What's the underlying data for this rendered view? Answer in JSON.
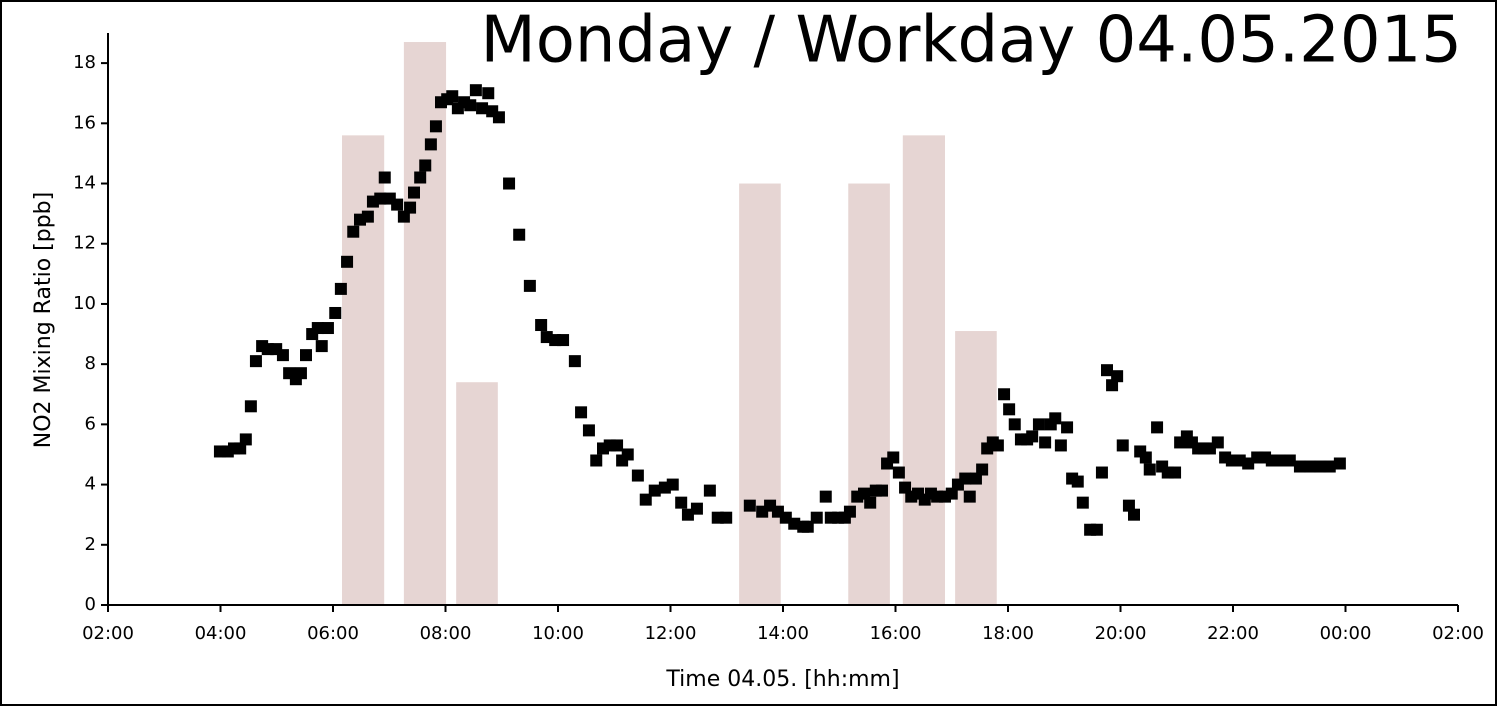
{
  "chart_data": {
    "type": "scatter",
    "title": "Monday / Workday 04.05.2015",
    "xlabel": "Time 04.05. [hh:mm]",
    "ylabel": "NO2 Mixing Ratio [ppb]",
    "xlim": [
      2,
      26
    ],
    "ylim": [
      0,
      19
    ],
    "xticks": [
      {
        "value": 2,
        "label": "02:00"
      },
      {
        "value": 4,
        "label": "04:00"
      },
      {
        "value": 6,
        "label": "06:00"
      },
      {
        "value": 8,
        "label": "08:00"
      },
      {
        "value": 10,
        "label": "10:00"
      },
      {
        "value": 12,
        "label": "12:00"
      },
      {
        "value": 14,
        "label": "14:00"
      },
      {
        "value": 16,
        "label": "16:00"
      },
      {
        "value": 18,
        "label": "18:00"
      },
      {
        "value": 20,
        "label": "20:00"
      },
      {
        "value": 22,
        "label": "22:00"
      },
      {
        "value": 24,
        "label": "00:00"
      },
      {
        "value": 26,
        "label": "02:00"
      }
    ],
    "yticks": [
      0,
      2,
      4,
      6,
      8,
      10,
      12,
      14,
      16,
      18
    ],
    "series": [
      {
        "type": "bar",
        "color": "#e6d5d3",
        "x0": [
          6.16,
          7.26,
          8.19,
          13.22,
          15.16,
          16.13,
          17.06
        ],
        "x1": [
          6.91,
          8.01,
          8.93,
          13.96,
          15.9,
          16.88,
          17.8
        ],
        "values": [
          15.6,
          18.7,
          7.4,
          14.0,
          14.0,
          15.6,
          9.1
        ]
      },
      {
        "type": "scatter",
        "color": "#000000",
        "x": [
          3.99,
          4.13,
          4.24,
          4.35,
          4.45,
          4.54,
          4.63,
          4.74,
          4.84,
          4.99,
          5.11,
          5.22,
          5.34,
          5.43,
          5.52,
          5.63,
          5.73,
          5.8,
          5.91,
          6.04,
          6.14,
          6.25,
          6.36,
          6.48,
          6.62,
          6.71,
          6.84,
          6.92,
          7.01,
          7.14,
          7.26,
          7.37,
          7.44,
          7.55,
          7.64,
          7.74,
          7.83,
          7.92,
          8.03,
          8.12,
          8.22,
          8.33,
          8.44,
          8.54,
          8.65,
          8.76,
          8.83,
          8.95,
          9.13,
          9.31,
          9.5,
          9.7,
          9.8,
          9.95,
          10.09,
          10.3,
          10.41,
          10.55,
          10.68,
          10.8,
          10.92,
          11.05,
          11.14,
          11.24,
          11.42,
          11.56,
          11.72,
          11.9,
          12.04,
          12.19,
          12.31,
          12.47,
          12.7,
          12.84,
          12.99,
          13.41,
          13.63,
          13.77,
          13.91,
          14.05,
          14.2,
          14.36,
          14.44,
          14.6,
          14.76,
          14.85,
          14.98,
          15.1,
          15.19,
          15.32,
          15.44,
          15.55,
          15.65,
          15.76,
          15.85,
          15.96,
          16.06,
          16.17,
          16.28,
          16.4,
          16.52,
          16.63,
          16.74,
          16.88,
          17.0,
          17.11,
          17.24,
          17.32,
          17.43,
          17.54,
          17.63,
          17.73,
          17.82,
          17.93,
          18.02,
          18.12,
          18.23,
          18.34,
          18.43,
          18.55,
          18.66,
          18.76,
          18.84,
          18.94,
          19.05,
          19.14,
          19.24,
          19.33,
          19.46,
          19.58,
          19.67,
          19.76,
          19.85,
          19.94,
          20.04,
          20.15,
          20.24,
          20.35,
          20.45,
          20.52,
          20.65,
          20.74,
          20.84,
          20.97,
          21.06,
          21.18,
          21.27,
          21.38,
          21.48,
          21.59,
          21.73,
          21.86,
          21.98,
          22.12,
          22.27,
          22.43,
          22.57,
          22.69,
          22.84,
          23.01,
          23.19,
          23.37,
          23.55,
          23.72,
          23.9
        ],
        "values": [
          5.1,
          5.1,
          5.2,
          5.2,
          5.5,
          6.6,
          8.1,
          8.6,
          8.5,
          8.5,
          8.3,
          7.7,
          7.5,
          7.7,
          8.3,
          9.0,
          9.2,
          8.6,
          9.2,
          9.7,
          10.5,
          11.4,
          12.4,
          12.8,
          12.9,
          13.4,
          13.5,
          14.2,
          13.5,
          13.3,
          12.9,
          13.2,
          13.7,
          14.2,
          14.6,
          15.3,
          15.9,
          16.7,
          16.8,
          16.9,
          16.5,
          16.7,
          16.6,
          17.1,
          16.5,
          17.0,
          16.4,
          16.2,
          14.0,
          12.3,
          10.6,
          9.3,
          8.9,
          8.8,
          8.8,
          8.1,
          6.4,
          5.8,
          4.8,
          5.2,
          5.3,
          5.3,
          4.8,
          5.0,
          4.3,
          3.5,
          3.8,
          3.9,
          4.0,
          3.4,
          3.0,
          3.2,
          3.8,
          2.9,
          2.9,
          3.3,
          3.1,
          3.3,
          3.1,
          2.9,
          2.7,
          2.6,
          2.6,
          2.9,
          3.6,
          2.9,
          2.9,
          2.9,
          3.1,
          3.6,
          3.7,
          3.4,
          3.8,
          3.8,
          4.7,
          4.9,
          4.4,
          3.9,
          3.6,
          3.7,
          3.5,
          3.7,
          3.6,
          3.6,
          3.7,
          4.0,
          4.2,
          3.6,
          4.2,
          4.5,
          5.2,
          5.4,
          5.3,
          7.0,
          6.5,
          6.0,
          5.5,
          5.5,
          5.6,
          6.0,
          5.4,
          6.0,
          6.2,
          5.3,
          5.9,
          4.2,
          4.1,
          3.4,
          2.5,
          2.5,
          4.4,
          7.8,
          7.3,
          7.6,
          5.3,
          3.3,
          3.0,
          5.1,
          4.9,
          4.5,
          5.9,
          4.6,
          4.4,
          4.4,
          5.4,
          5.6,
          5.4,
          5.2,
          5.2,
          5.2,
          5.4,
          4.9,
          4.8,
          4.8,
          4.7,
          4.9,
          4.9,
          4.8,
          4.8,
          4.8,
          4.6,
          4.6,
          4.6,
          4.6,
          4.7
        ]
      }
    ]
  }
}
